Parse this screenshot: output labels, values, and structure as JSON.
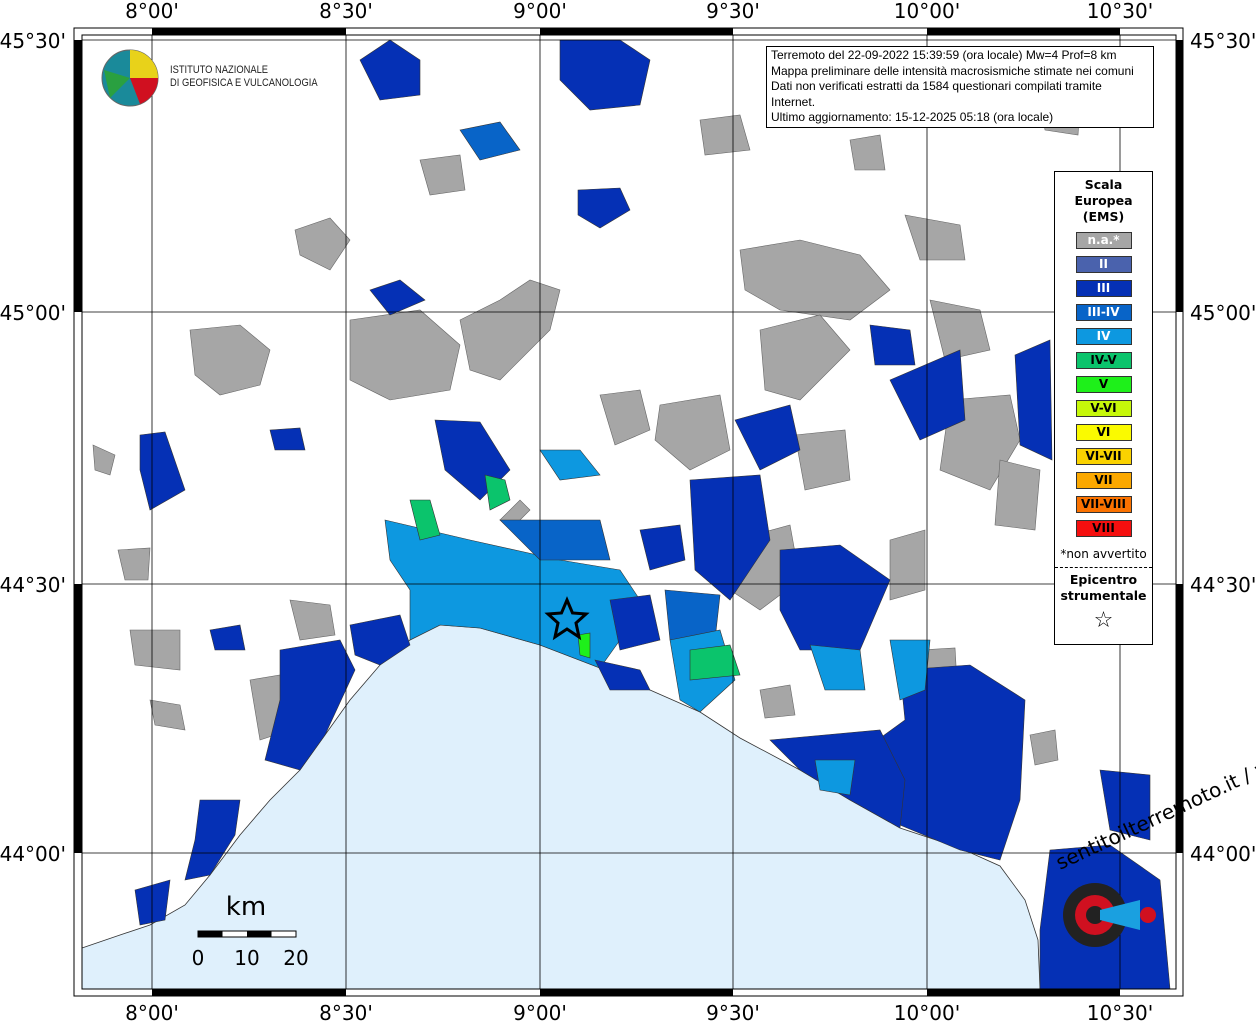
{
  "header": {
    "lines": [
      "Terremoto del 22-09-2022 15:39:59 (ora locale) Mw=4 Prof=8 km",
      "Mappa preliminare delle intensità macrosismiche stimate nei comuni",
      "Dati non verificati estratti da 1584 questionari compilati tramite Internet.",
      "Ultimo aggiornamento: 15-12-2025 05:18 (ora locale)"
    ]
  },
  "logo": {
    "line1": "ISTITUTO NAZIONALE",
    "line2": "DI GEOFISICA E VULCANOLOGIA"
  },
  "axes": {
    "lon_labels": [
      "8°00'",
      "8°30'",
      "9°00'",
      "9°30'",
      "10°00'",
      "10°30'"
    ],
    "lat_labels": [
      "45°30'",
      "45°00'",
      "44°30'",
      "44°00'"
    ]
  },
  "legend": {
    "title": [
      "Scala",
      "Europea",
      "(EMS)"
    ],
    "items": [
      {
        "label": "n.a.*",
        "color": "#a6a6a6",
        "text": "#fff"
      },
      {
        "label": "II",
        "color": "#4a62ad",
        "text": "#fff"
      },
      {
        "label": "III",
        "color": "#0530b5",
        "text": "#fff"
      },
      {
        "label": "III-IV",
        "color": "#0864c8",
        "text": "#fff"
      },
      {
        "label": "IV",
        "color": "#0d98e0",
        "text": "#fff"
      },
      {
        "label": "IV-V",
        "color": "#0bc46c",
        "text": "#000"
      },
      {
        "label": "V",
        "color": "#1ef01a",
        "text": "#000"
      },
      {
        "label": "V-VI",
        "color": "#c6f80a",
        "text": "#000"
      },
      {
        "label": "VI",
        "color": "#fafa00",
        "text": "#000"
      },
      {
        "label": "VI-VII",
        "color": "#fad200",
        "text": "#000"
      },
      {
        "label": "VII",
        "color": "#fba800",
        "text": "#000"
      },
      {
        "label": "VII-VIII",
        "color": "#fb7200",
        "text": "#000"
      },
      {
        "label": "VIII",
        "color": "#f50f0f",
        "text": "#000"
      }
    ],
    "note": "*non avvertito",
    "epicenter_label": [
      "Epicentro",
      "strumentale"
    ],
    "epicenter_symbol": "☆"
  },
  "scalebar": {
    "unit": "km",
    "ticks": [
      "0",
      "10",
      "20"
    ]
  },
  "watermark": "sentitoilterremoto.it / www",
  "colors": {
    "sea": "#dff0fc",
    "na": "#a6a6a6",
    "III": "#0530b5",
    "IV": "#0d98e0"
  }
}
